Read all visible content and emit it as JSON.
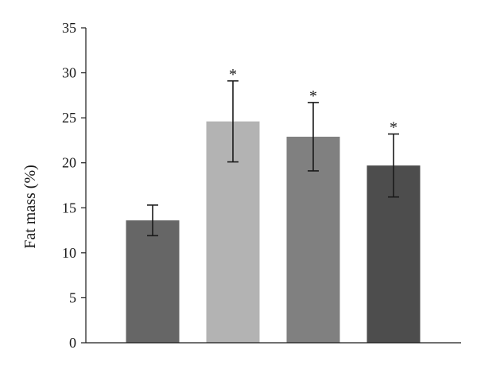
{
  "chart_data": {
    "type": "bar",
    "title": "",
    "xlabel": "",
    "ylabel": "Fat mass (%)",
    "ylim": [
      0,
      35
    ],
    "yticks": [
      0,
      5,
      10,
      15,
      20,
      25,
      30,
      35
    ],
    "grid": false,
    "legend": "none",
    "bars": [
      {
        "value": 13.6,
        "error": 1.7,
        "color": "#666666",
        "annotation": ""
      },
      {
        "value": 24.6,
        "error": 4.5,
        "color": "#b3b3b3",
        "annotation": "*"
      },
      {
        "value": 22.9,
        "error": 3.8,
        "color": "#808080",
        "annotation": "*"
      },
      {
        "value": 19.7,
        "error": 3.5,
        "color": "#4d4d4d",
        "annotation": "*"
      }
    ]
  }
}
